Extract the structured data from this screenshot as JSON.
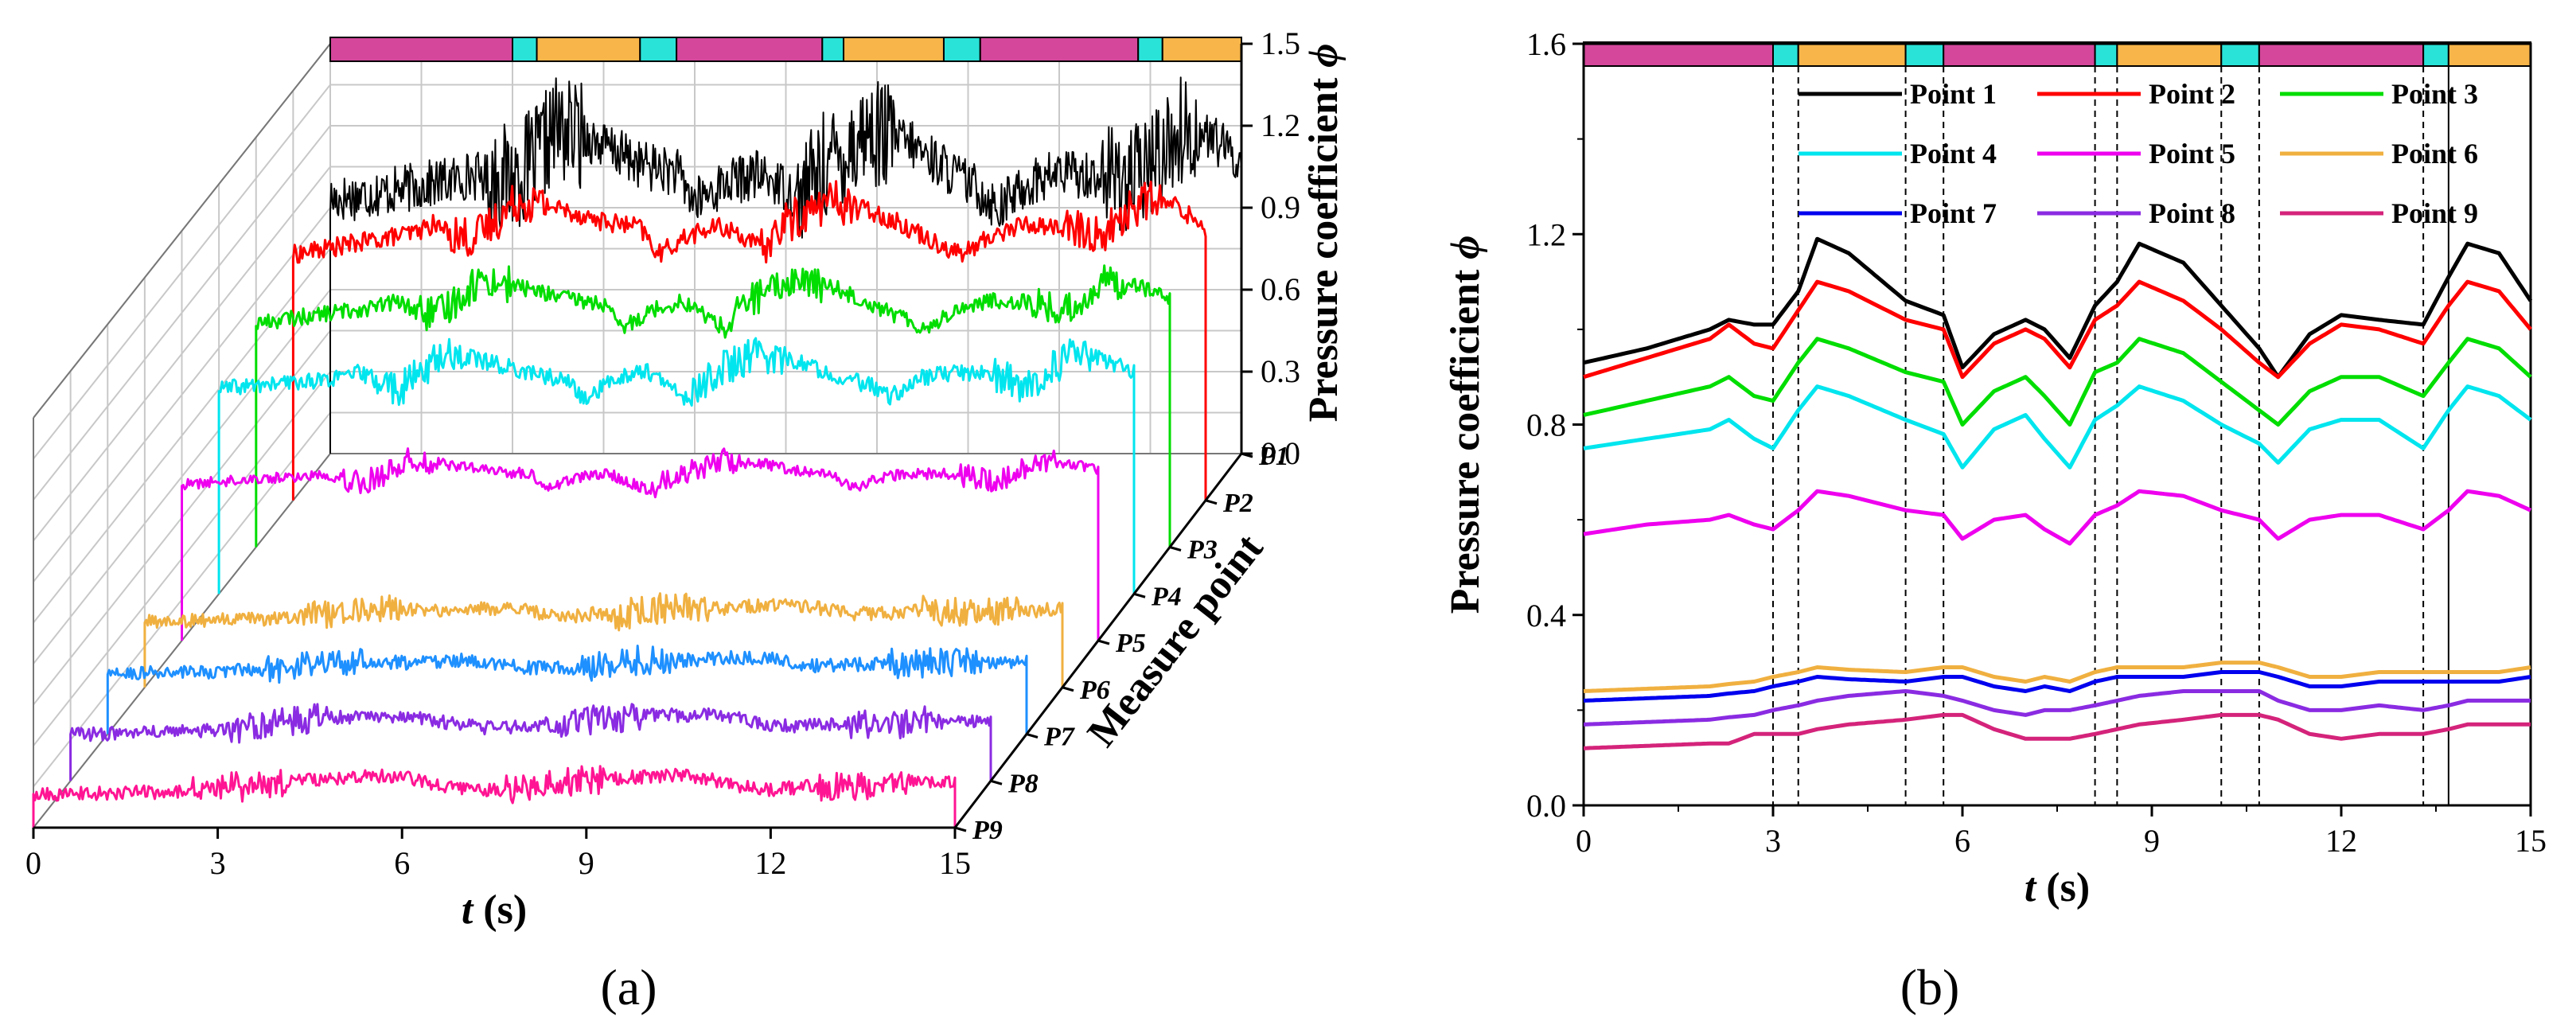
{
  "panels": {
    "a_label": "(a)",
    "b_label": "(b)"
  },
  "colors": {
    "phase_magenta": "#d4479b",
    "phase_cyan": "#2ae3d8",
    "phase_orange": "#f7b54a",
    "grid": "#c8c8c8"
  },
  "phase_bar": [
    {
      "start": 0.0,
      "end": 3.0,
      "color": "#d4479b"
    },
    {
      "start": 3.0,
      "end": 3.4,
      "color": "#2ae3d8"
    },
    {
      "start": 3.4,
      "end": 5.1,
      "color": "#f7b54a"
    },
    {
      "start": 5.1,
      "end": 5.7,
      "color": "#2ae3d8"
    },
    {
      "start": 5.7,
      "end": 8.1,
      "color": "#d4479b"
    },
    {
      "start": 8.1,
      "end": 8.45,
      "color": "#2ae3d8"
    },
    {
      "start": 8.45,
      "end": 10.1,
      "color": "#f7b54a"
    },
    {
      "start": 10.1,
      "end": 10.7,
      "color": "#2ae3d8"
    },
    {
      "start": 10.7,
      "end": 13.3,
      "color": "#d4479b"
    },
    {
      "start": 13.3,
      "end": 13.7,
      "color": "#2ae3d8"
    },
    {
      "start": 13.7,
      "end": 15.0,
      "color": "#f7b54a"
    }
  ],
  "chart_data": [
    {
      "id": "a",
      "type": "line",
      "projection": "3d-waterfall",
      "x_label_var": "t",
      "x_label_unit": " (s)",
      "xlim": [
        0,
        15
      ],
      "x_ticks": [
        "0",
        "3",
        "6",
        "9",
        "12",
        "15"
      ],
      "z_label": "Pressure coefficient ",
      "z_label_symbol": "ϕ",
      "zlim": [
        0,
        1.5
      ],
      "z_ticks": [
        "0.0",
        "0.3",
        "0.6",
        "0.9",
        "1.2",
        "1.5"
      ],
      "depth_label": "Measure point",
      "depth_ticks": [
        "P1",
        "P2",
        "P3",
        "P4",
        "P5",
        "P6",
        "P7",
        "P8",
        "P9"
      ],
      "grid": true,
      "series": [
        {
          "color": "#000000",
          "base": 1.05,
          "amp": 0.14,
          "noise": 0.09
        },
        {
          "color": "#ff0000",
          "base": 0.94,
          "amp": 0.08,
          "noise": 0.035
        },
        {
          "color": "#00dd00",
          "base": 0.84,
          "amp": 0.08,
          "noise": 0.03
        },
        {
          "color": "#00e5ee",
          "base": 0.76,
          "amp": 0.08,
          "noise": 0.03
        },
        {
          "color": "#ee00ee",
          "base": 0.58,
          "amp": 0.05,
          "noise": 0.02
        },
        {
          "color": "#f0b040",
          "base": 0.24,
          "amp": 0.02,
          "noise": 0.025
        },
        {
          "color": "#1e90ff",
          "base": 0.22,
          "amp": 0.02,
          "noise": 0.025
        },
        {
          "color": "#8a2be2",
          "base": 0.18,
          "amp": 0.02,
          "noise": 0.025
        },
        {
          "color": "#ff1493",
          "base": 0.13,
          "amp": 0.02,
          "noise": 0.025
        }
      ]
    },
    {
      "id": "b",
      "type": "line",
      "x_label_var": "t",
      "x_label_unit": " (s)",
      "xlim": [
        0,
        15
      ],
      "x_ticks": [
        "0",
        "3",
        "6",
        "9",
        "12",
        "15"
      ],
      "y_label": "Pressure coefficient ",
      "y_label_symbol": "ϕ",
      "ylim": [
        0,
        1.6
      ],
      "y_ticks": [
        "0.0",
        "0.4",
        "0.8",
        "1.2",
        "1.6"
      ],
      "grid": false,
      "legend_position": "top-right",
      "vlines": [
        3.0,
        3.4,
        5.1,
        5.7,
        8.1,
        8.45,
        10.1,
        10.7,
        13.3,
        13.7
      ],
      "x": [
        0,
        1,
        2,
        2.3,
        2.7,
        3.0,
        3.4,
        3.7,
        4.2,
        5.1,
        5.7,
        6.0,
        6.5,
        7.0,
        7.3,
        7.7,
        8.1,
        8.45,
        8.8,
        9.5,
        10.1,
        10.7,
        11.0,
        11.5,
        12.0,
        12.6,
        13.3,
        13.7,
        14.0,
        14.5,
        15.0
      ],
      "series": [
        {
          "name": "Point 1",
          "color": "#000000",
          "values": [
            0.93,
            0.96,
            1.0,
            1.02,
            1.01,
            1.01,
            1.08,
            1.19,
            1.16,
            1.06,
            1.03,
            0.92,
            0.99,
            1.02,
            1.0,
            0.94,
            1.05,
            1.1,
            1.18,
            1.14,
            1.05,
            0.96,
            0.9,
            0.99,
            1.03,
            1.02,
            1.01,
            1.11,
            1.18,
            1.16,
            1.06
          ]
        },
        {
          "name": "Point 2",
          "color": "#ff0000",
          "values": [
            0.9,
            0.94,
            0.98,
            1.01,
            0.97,
            0.96,
            1.04,
            1.1,
            1.08,
            1.02,
            1.0,
            0.9,
            0.97,
            1.0,
            0.98,
            0.92,
            1.02,
            1.05,
            1.1,
            1.06,
            1.0,
            0.93,
            0.9,
            0.97,
            1.01,
            1.0,
            0.97,
            1.05,
            1.1,
            1.08,
            1.0
          ]
        },
        {
          "name": "Point 3",
          "color": "#00dd00",
          "values": [
            0.82,
            0.85,
            0.88,
            0.9,
            0.86,
            0.85,
            0.93,
            0.98,
            0.96,
            0.91,
            0.89,
            0.8,
            0.87,
            0.9,
            0.86,
            0.8,
            0.91,
            0.93,
            0.98,
            0.95,
            0.89,
            0.83,
            0.8,
            0.87,
            0.9,
            0.9,
            0.86,
            0.93,
            0.98,
            0.96,
            0.9
          ]
        },
        {
          "name": "Point 4",
          "color": "#00e5ee",
          "values": [
            0.75,
            0.77,
            0.79,
            0.81,
            0.77,
            0.75,
            0.83,
            0.88,
            0.86,
            0.81,
            0.78,
            0.71,
            0.79,
            0.82,
            0.77,
            0.71,
            0.81,
            0.84,
            0.88,
            0.85,
            0.8,
            0.76,
            0.72,
            0.79,
            0.81,
            0.81,
            0.75,
            0.83,
            0.88,
            0.86,
            0.81
          ]
        },
        {
          "name": "Point 5",
          "color": "#ee00ee",
          "values": [
            0.57,
            0.59,
            0.6,
            0.61,
            0.59,
            0.58,
            0.62,
            0.66,
            0.65,
            0.62,
            0.61,
            0.56,
            0.6,
            0.61,
            0.58,
            0.55,
            0.61,
            0.63,
            0.66,
            0.65,
            0.62,
            0.6,
            0.56,
            0.6,
            0.61,
            0.61,
            0.58,
            0.62,
            0.66,
            0.65,
            0.62
          ]
        },
        {
          "name": "Point 6",
          "color": "#f0b040",
          "values": [
            0.24,
            0.245,
            0.25,
            0.255,
            0.26,
            0.27,
            0.28,
            0.29,
            0.285,
            0.28,
            0.29,
            0.29,
            0.27,
            0.26,
            0.27,
            0.26,
            0.28,
            0.29,
            0.29,
            0.29,
            0.3,
            0.3,
            0.29,
            0.27,
            0.27,
            0.28,
            0.28,
            0.28,
            0.28,
            0.28,
            0.29
          ]
        },
        {
          "name": "Point 7",
          "color": "#0000ee",
          "values": [
            0.22,
            0.225,
            0.23,
            0.235,
            0.24,
            0.25,
            0.26,
            0.27,
            0.265,
            0.26,
            0.27,
            0.27,
            0.25,
            0.24,
            0.25,
            0.24,
            0.26,
            0.27,
            0.27,
            0.27,
            0.28,
            0.28,
            0.27,
            0.25,
            0.25,
            0.26,
            0.26,
            0.26,
            0.26,
            0.26,
            0.27
          ]
        },
        {
          "name": "Point 8",
          "color": "#8a2be2",
          "values": [
            0.17,
            0.175,
            0.18,
            0.185,
            0.19,
            0.2,
            0.21,
            0.22,
            0.23,
            0.24,
            0.23,
            0.22,
            0.2,
            0.19,
            0.2,
            0.2,
            0.21,
            0.22,
            0.23,
            0.24,
            0.24,
            0.24,
            0.22,
            0.2,
            0.2,
            0.21,
            0.2,
            0.21,
            0.22,
            0.22,
            0.22
          ]
        },
        {
          "name": "Point 9",
          "color": "#d4237a",
          "values": [
            0.12,
            0.125,
            0.13,
            0.13,
            0.15,
            0.15,
            0.15,
            0.16,
            0.17,
            0.18,
            0.19,
            0.19,
            0.16,
            0.14,
            0.14,
            0.14,
            0.15,
            0.16,
            0.17,
            0.18,
            0.19,
            0.19,
            0.18,
            0.15,
            0.14,
            0.15,
            0.15,
            0.16,
            0.17,
            0.17,
            0.17
          ]
        }
      ]
    }
  ]
}
